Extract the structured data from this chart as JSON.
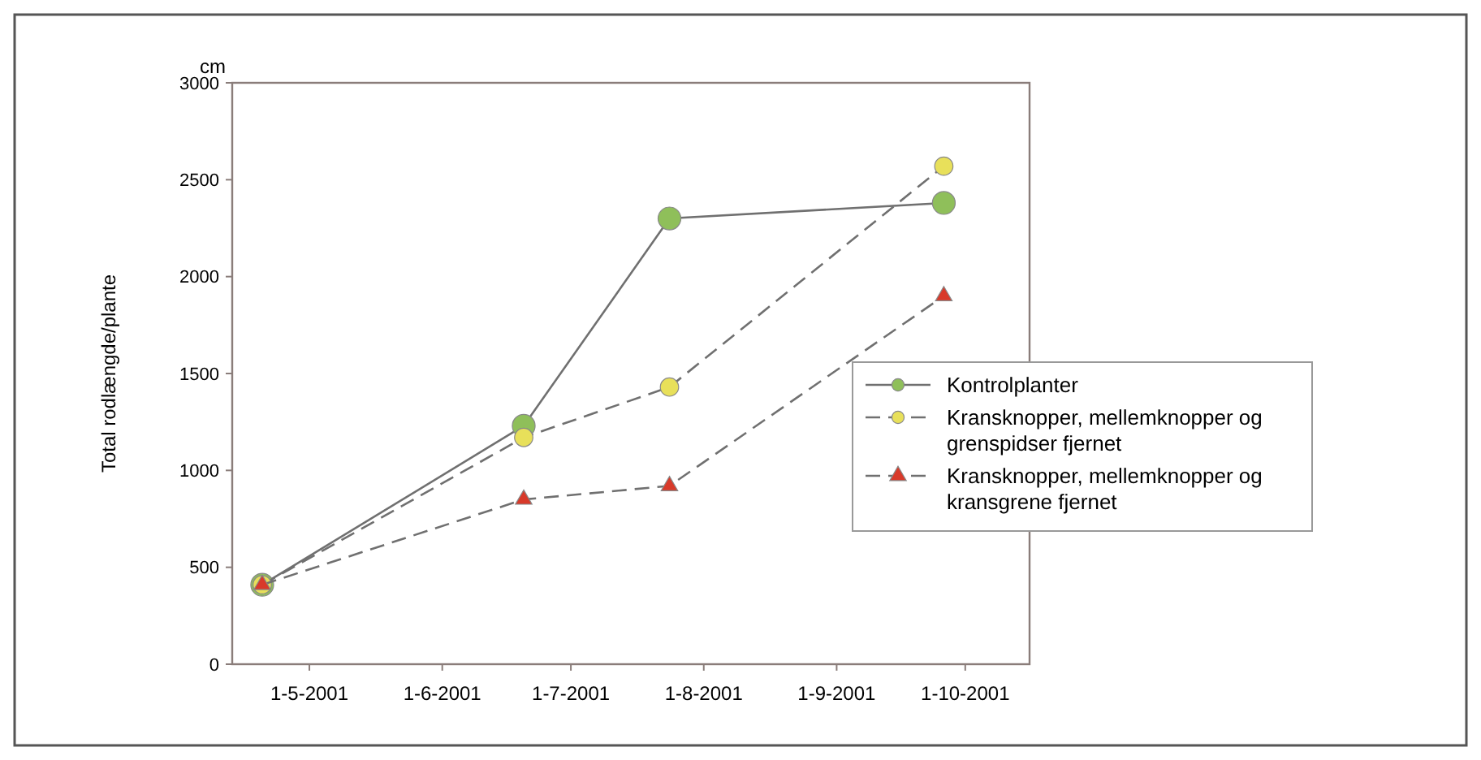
{
  "chart_data": {
    "type": "line",
    "ylabel": "Total rodlængde/plante",
    "annotations": [
      "cm"
    ],
    "x": [
      "2001-04-20",
      "2001-06-20",
      "2001-07-24",
      "2001-09-26"
    ],
    "xlim": [
      "2001-04-13",
      "2001-10-16"
    ],
    "xticks": [
      {
        "value": "2001-05-01",
        "label": "1-5-2001"
      },
      {
        "value": "2001-06-01",
        "label": "1-6-2001"
      },
      {
        "value": "2001-07-01",
        "label": "1-7-2001"
      },
      {
        "value": "2001-08-01",
        "label": "1-8-2001"
      },
      {
        "value": "2001-09-01",
        "label": "1-9-2001"
      },
      {
        "value": "2001-10-01",
        "label": "1-10-2001"
      }
    ],
    "ylim": [
      0,
      3000
    ],
    "yticks": [
      0,
      500,
      1000,
      1500,
      2000,
      2500,
      3000
    ],
    "legend": "right",
    "grid": false,
    "series": [
      {
        "name": "Kontrolplanter",
        "color": "#8fbf5a",
        "marker": "circle",
        "line_style": "solid",
        "values": [
          410,
          1230,
          2300,
          2380
        ]
      },
      {
        "name": "Kransknopper, mellemknopper og grenspidser fjernet",
        "color": "#e8e05a",
        "marker": "circle",
        "line_style": "dashed",
        "values": [
          410,
          1170,
          1430,
          2570
        ]
      },
      {
        "name": "Kransknopper, mellemknopper og kransgrene fjernet",
        "color": "#d83a2a",
        "marker": "triangle",
        "line_style": "dashed",
        "values": [
          410,
          850,
          920,
          1900
        ]
      }
    ]
  }
}
